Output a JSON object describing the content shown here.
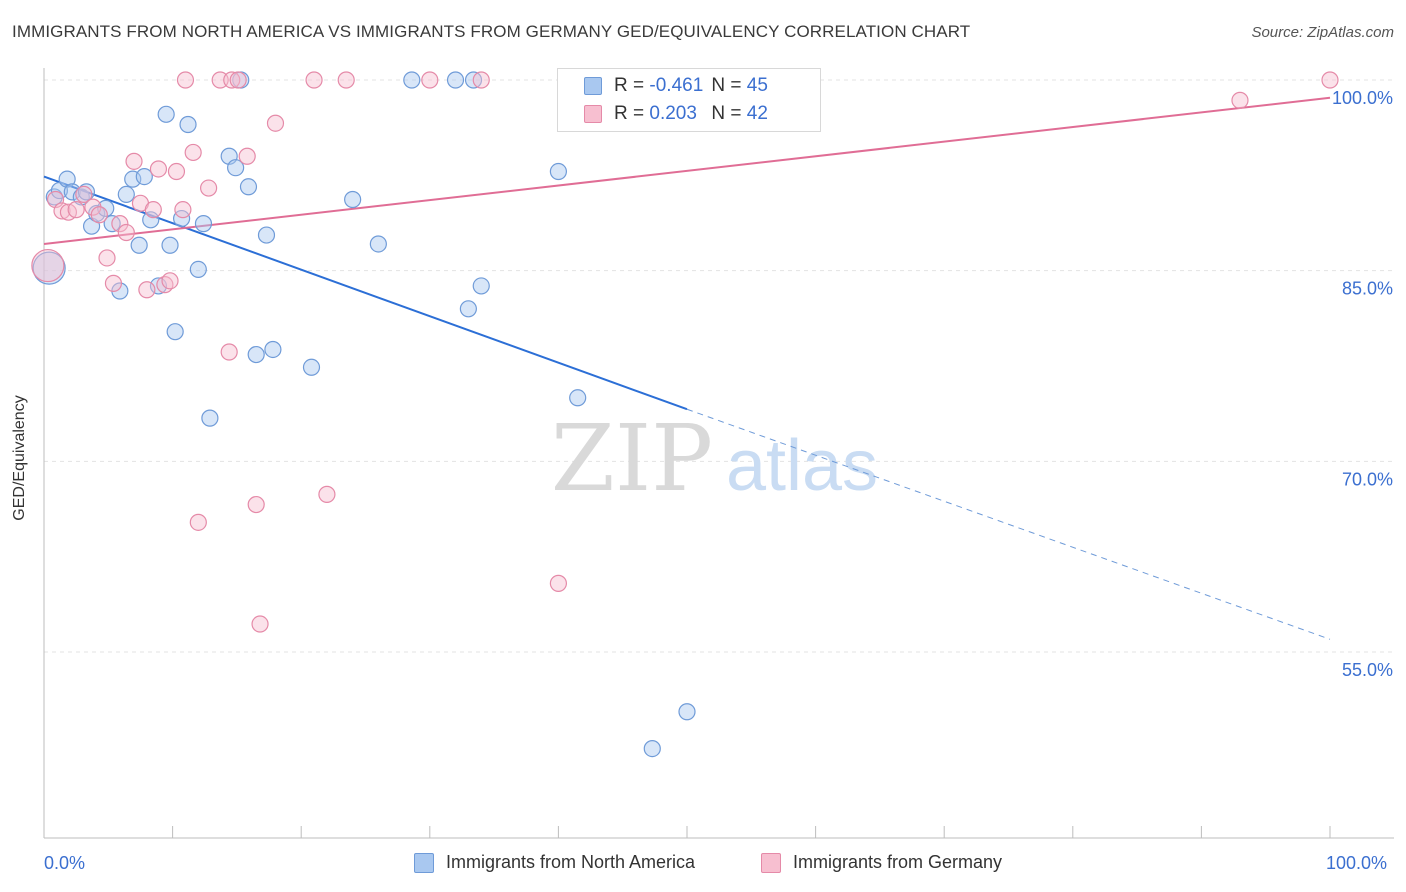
{
  "title": "IMMIGRANTS FROM NORTH AMERICA VS IMMIGRANTS FROM GERMANY GED/EQUIVALENCY CORRELATION CHART",
  "source": "Source: ZipAtlas.com",
  "watermark": {
    "zip": "ZIP",
    "atlas": "atlas"
  },
  "legend_stats": [
    {
      "r_label": "R =",
      "r_value": "-0.461",
      "n_label": "N =",
      "n_value": "45",
      "color": "#a9c8f0",
      "border": "#6f9bd8"
    },
    {
      "r_label": "R =",
      "r_value": "0.203",
      "n_label": "N =",
      "n_value": "42",
      "color": "#f7bfd0",
      "border": "#e58aa8"
    }
  ],
  "chart_data": {
    "type": "scatter",
    "title": "IMMIGRANTS FROM NORTH AMERICA VS IMMIGRANTS FROM GERMANY GED/EQUIVALENCY CORRELATION CHART",
    "xlabel": "",
    "ylabel": "GED/Equivalency",
    "xlim": [
      0,
      100
    ],
    "ylim": [
      40,
      102
    ],
    "x_tick_labels": [
      "0.0%",
      "100.0%"
    ],
    "y_ticks": [
      55,
      70,
      85,
      100
    ],
    "y_tick_labels": [
      "55.0%",
      "70.0%",
      "85.0%",
      "100.0%"
    ],
    "grid": true,
    "legend_position": "bottom",
    "series": [
      {
        "name": "Immigrants from North America",
        "color": "#6f9bd8",
        "fill": "#a9c8f0",
        "points": [
          [
            0.4,
            85.2
          ],
          [
            0.8,
            90.8
          ],
          [
            1.2,
            91.3
          ],
          [
            1.8,
            92.2
          ],
          [
            2.2,
            91.2
          ],
          [
            2.9,
            90.8
          ],
          [
            3.3,
            91.2
          ],
          [
            3.7,
            88.5
          ],
          [
            4.1,
            89.5
          ],
          [
            4.8,
            89.9
          ],
          [
            5.3,
            88.7
          ],
          [
            5.9,
            83.4
          ],
          [
            6.4,
            91.0
          ],
          [
            6.9,
            92.2
          ],
          [
            7.4,
            87.0
          ],
          [
            7.8,
            92.4
          ],
          [
            8.3,
            89.0
          ],
          [
            8.9,
            83.8
          ],
          [
            9.5,
            97.3
          ],
          [
            9.8,
            87.0
          ],
          [
            10.2,
            80.2
          ],
          [
            10.7,
            89.1
          ],
          [
            11.2,
            96.5
          ],
          [
            12.0,
            85.1
          ],
          [
            12.4,
            88.7
          ],
          [
            12.9,
            73.4
          ],
          [
            14.4,
            94.0
          ],
          [
            14.9,
            93.1
          ],
          [
            15.3,
            100.0
          ],
          [
            15.9,
            91.6
          ],
          [
            16.5,
            78.4
          ],
          [
            17.3,
            87.8
          ],
          [
            17.8,
            78.8
          ],
          [
            20.8,
            77.4
          ],
          [
            24.0,
            90.6
          ],
          [
            26.0,
            87.1
          ],
          [
            28.6,
            100.0
          ],
          [
            32.0,
            100.0
          ],
          [
            33.0,
            82.0
          ],
          [
            33.4,
            100.0
          ],
          [
            34.0,
            83.8
          ],
          [
            40.0,
            92.8
          ],
          [
            41.5,
            75.0
          ],
          [
            47.3,
            47.4
          ],
          [
            50.0,
            50.3
          ]
        ]
      },
      {
        "name": "Immigrants from Germany",
        "color": "#e58aa8",
        "fill": "#f7bfd0",
        "points": [
          [
            0.3,
            85.4
          ],
          [
            0.9,
            90.6
          ],
          [
            1.4,
            89.7
          ],
          [
            1.9,
            89.6
          ],
          [
            2.5,
            89.8
          ],
          [
            3.1,
            91.0
          ],
          [
            3.8,
            90.0
          ],
          [
            4.3,
            89.4
          ],
          [
            4.9,
            86.0
          ],
          [
            5.4,
            84.0
          ],
          [
            5.9,
            88.7
          ],
          [
            6.4,
            88.0
          ],
          [
            7.0,
            93.6
          ],
          [
            7.5,
            90.3
          ],
          [
            8.0,
            83.5
          ],
          [
            8.5,
            89.8
          ],
          [
            8.9,
            93.0
          ],
          [
            9.4,
            83.9
          ],
          [
            9.8,
            84.2
          ],
          [
            10.3,
            92.8
          ],
          [
            10.8,
            89.8
          ],
          [
            11.0,
            100.0
          ],
          [
            11.6,
            94.3
          ],
          [
            12.0,
            65.2
          ],
          [
            12.8,
            91.5
          ],
          [
            13.7,
            100.0
          ],
          [
            14.4,
            78.6
          ],
          [
            14.6,
            100.0
          ],
          [
            15.1,
            100.0
          ],
          [
            15.8,
            94.0
          ],
          [
            16.5,
            66.6
          ],
          [
            16.8,
            57.2
          ],
          [
            18.0,
            96.6
          ],
          [
            21.0,
            100.0
          ],
          [
            22.0,
            67.4
          ],
          [
            23.5,
            100.0
          ],
          [
            30.0,
            100.0
          ],
          [
            34.0,
            100.0
          ],
          [
            40.0,
            60.4
          ],
          [
            93.0,
            98.4
          ],
          [
            100.0,
            100.0
          ],
          [
            50.0,
            100.0
          ]
        ]
      }
    ],
    "trendlines": [
      {
        "series": "Immigrants from North America",
        "x_start": 0,
        "y_start": 92.4,
        "x_solid_end": 50,
        "y_solid_end": 74.1,
        "x_end": 100,
        "y_end": 56.0,
        "dashed_after_solid": true
      },
      {
        "series": "Immigrants from Germany",
        "x_start": 0,
        "y_start": 87.1,
        "x_end": 100,
        "y_end": 98.6
      }
    ]
  }
}
